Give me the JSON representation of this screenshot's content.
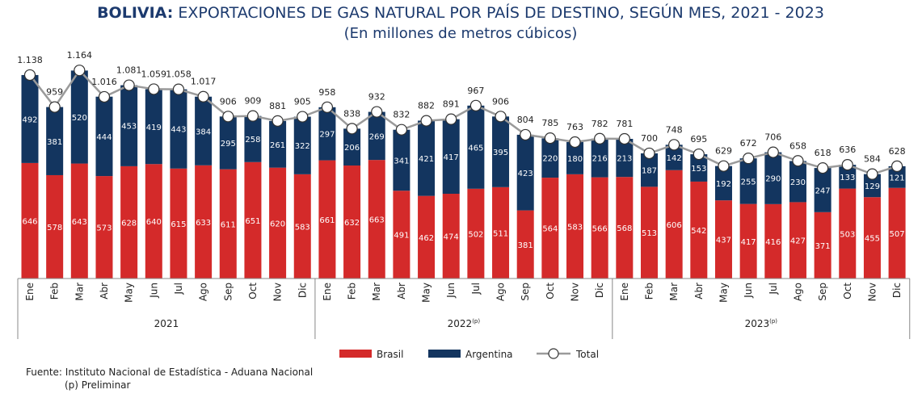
{
  "title": {
    "bold": "BOLIVIA:",
    "rest": " EXPORTACIONES DE GAS NATURAL POR PAÍS DE DESTINO, SEGÚN MES, 2021 - 2023",
    "subtitle": "(En millones de metros cúbicos)"
  },
  "colors": {
    "brasil": "#d42a2a",
    "argentina": "#13355f",
    "total": "#9a9a9a",
    "title": "#1c3a6e"
  },
  "chart_data": {
    "type": "bar",
    "stacked": true,
    "months": [
      "Ene",
      "Feb",
      "Mar",
      "Abr",
      "May",
      "Jun",
      "Jul",
      "Ago",
      "Sep",
      "Oct",
      "Nov",
      "Dic"
    ],
    "years": [
      {
        "label": "2021",
        "sup": ""
      },
      {
        "label": "2022",
        "sup": "(p)"
      },
      {
        "label": "2023",
        "sup": "(p)"
      }
    ],
    "series": [
      {
        "name": "Brasil",
        "values": [
          646,
          578,
          643,
          573,
          628,
          640,
          615,
          633,
          611,
          651,
          620,
          583,
          661,
          632,
          663,
          491,
          462,
          474,
          502,
          511,
          381,
          564,
          583,
          566,
          568,
          513,
          606,
          542,
          437,
          417,
          416,
          427,
          371,
          503,
          455,
          507
        ]
      },
      {
        "name": "Argentina",
        "values": [
          492,
          381,
          520,
          444,
          453,
          419,
          443,
          384,
          295,
          258,
          261,
          322,
          297,
          206,
          269,
          341,
          421,
          417,
          465,
          395,
          423,
          220,
          180,
          216,
          213,
          187,
          142,
          153,
          192,
          255,
          290,
          230,
          247,
          133,
          129,
          121
        ]
      },
      {
        "name": "Total",
        "type": "line",
        "values": [
          1138,
          959,
          1164,
          1016,
          1081,
          1059,
          1058,
          1017,
          906,
          909,
          881,
          905,
          958,
          838,
          932,
          832,
          882,
          891,
          967,
          906,
          804,
          785,
          763,
          782,
          781,
          700,
          748,
          695,
          629,
          672,
          706,
          658,
          618,
          636,
          584,
          628
        ]
      }
    ],
    "legend_position": "bottom",
    "grid": false
  },
  "footer": {
    "source": "Fuente: Instituto Nacional de Estadística - Aduana Nacional",
    "note": "(p) Preliminar"
  }
}
